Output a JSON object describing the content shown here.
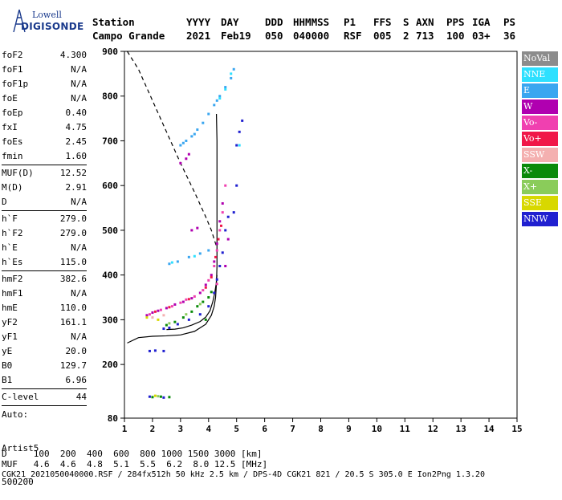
{
  "logo": {
    "top": "Lowell",
    "bottom": "DIGISONDE"
  },
  "header": {
    "labels": [
      "Station",
      "YYYY",
      "DAY",
      "DDD",
      "HHMMSS",
      "P1",
      "FFS",
      "S",
      "AXN",
      "PPS",
      "IGA",
      "PS"
    ],
    "values": [
      "Campo Grande",
      "2021",
      "Feb19",
      "050",
      "040000",
      "RSF",
      "005",
      "2",
      "713",
      "100",
      "03+",
      "36"
    ]
  },
  "params": [
    {
      "k": "foF2",
      "v": "4.300"
    },
    {
      "k": "foF1",
      "v": "N/A"
    },
    {
      "k": "foF1p",
      "v": "N/A"
    },
    {
      "k": "foE",
      "v": "N/A"
    },
    {
      "k": "foEp",
      "v": "0.40"
    },
    {
      "k": "fxI",
      "v": "4.75"
    },
    {
      "k": "foEs",
      "v": "2.45"
    },
    {
      "k": "fmin",
      "v": "1.60",
      "sep": true
    },
    {
      "k": "MUF(D)",
      "v": "12.52"
    },
    {
      "k": "M(D)",
      "v": "2.91"
    },
    {
      "k": "D",
      "v": "N/A",
      "sep": true
    },
    {
      "k": "h`F",
      "v": "279.0"
    },
    {
      "k": "h`F2",
      "v": "279.0"
    },
    {
      "k": "h`E",
      "v": "N/A"
    },
    {
      "k": "h`Es",
      "v": "115.0",
      "sep": true
    },
    {
      "k": "hmF2",
      "v": "382.6"
    },
    {
      "k": "hmF1",
      "v": "N/A"
    },
    {
      "k": "hmE",
      "v": "110.0"
    },
    {
      "k": "yF2",
      "v": "161.1"
    },
    {
      "k": "yF1",
      "v": "N/A"
    },
    {
      "k": "yE",
      "v": "20.0"
    },
    {
      "k": "B0",
      "v": "129.7"
    },
    {
      "k": "B1",
      "v": "6.96",
      "sep": true
    },
    {
      "k": "C-level",
      "v": "44",
      "sep": true
    }
  ],
  "auto": [
    "Auto:",
    "Artist5",
    "500200"
  ],
  "footer": {
    "d_row": "D     100  200  400  600  800 1000 1500 3000 [km]",
    "muf_row": "MUF   4.6  4.6  4.8  5.1  5.5  6.2  8.0 12.5 [MHz]",
    "file_row": "CGK21_2021050040000.RSF / 284fx512h 50 kHz 2.5 km / DPS-4D CGK21 821 / 20.5 S 305.0 E Ion2Png 1.3.20"
  },
  "legend": [
    {
      "label": "NoVal",
      "color": "#8c8c8c"
    },
    {
      "label": "NNE",
      "color": "#2ee0ff"
    },
    {
      "label": "E",
      "color": "#3aa6f0"
    },
    {
      "label": "W",
      "color": "#b000b0"
    },
    {
      "label": "Vo-",
      "color": "#f040b0"
    },
    {
      "label": "Vo+",
      "color": "#f01848"
    },
    {
      "label": "SSW",
      "color": "#f4b0b0"
    },
    {
      "label": "X-",
      "color": "#0a8a0a"
    },
    {
      "label": "X+",
      "color": "#8acc5a"
    },
    {
      "label": "SSE",
      "color": "#d8d800"
    },
    {
      "label": "NNW",
      "color": "#2020d0"
    }
  ],
  "chart_data": {
    "type": "scatter",
    "xlim": [
      1,
      15
    ],
    "ylim": [
      80,
      900
    ],
    "x_ticks": [
      1,
      2,
      3,
      4,
      5,
      6,
      7,
      8,
      9,
      10,
      11,
      12,
      13,
      14,
      15
    ],
    "y_ticks": [
      80,
      200,
      300,
      400,
      500,
      600,
      700,
      800,
      900
    ],
    "series": [
      {
        "name": "E",
        "color": "#3aa6f0",
        "points": [
          [
            3.0,
            690
          ],
          [
            3.2,
            700
          ],
          [
            3.4,
            710
          ],
          [
            3.6,
            725
          ],
          [
            3.8,
            740
          ],
          [
            4.0,
            760
          ],
          [
            4.2,
            780
          ],
          [
            4.4,
            800
          ],
          [
            4.6,
            820
          ],
          [
            4.8,
            840
          ],
          [
            4.9,
            860
          ],
          [
            3.1,
            695
          ],
          [
            3.5,
            715
          ],
          [
            4.3,
            790
          ],
          [
            2.6,
            425
          ],
          [
            2.9,
            430
          ],
          [
            3.3,
            440
          ],
          [
            3.7,
            448
          ],
          [
            4.0,
            455
          ]
        ]
      },
      {
        "name": "NNE",
        "color": "#2ee0ff",
        "points": [
          [
            2.7,
            428
          ],
          [
            3.5,
            442
          ],
          [
            4.4,
            795
          ],
          [
            4.6,
            815
          ],
          [
            5.1,
            690
          ],
          [
            4.8,
            850
          ]
        ]
      },
      {
        "name": "W",
        "color": "#b000b0",
        "points": [
          [
            1.8,
            310
          ],
          [
            2.0,
            316
          ],
          [
            2.2,
            320
          ],
          [
            2.5,
            326
          ],
          [
            2.8,
            334
          ],
          [
            3.1,
            340
          ],
          [
            3.4,
            348
          ],
          [
            3.7,
            360
          ],
          [
            3.9,
            378
          ],
          [
            4.1,
            400
          ],
          [
            4.2,
            430
          ],
          [
            4.3,
            470
          ],
          [
            4.4,
            520
          ],
          [
            4.5,
            560
          ],
          [
            3.0,
            650
          ],
          [
            3.2,
            660
          ],
          [
            3.3,
            670
          ],
          [
            3.4,
            500
          ],
          [
            3.6,
            505
          ],
          [
            4.6,
            420
          ],
          [
            4.7,
            480
          ]
        ]
      },
      {
        "name": "Vo-",
        "color": "#f040b0",
        "points": [
          [
            1.9,
            312
          ],
          [
            2.3,
            322
          ],
          [
            2.7,
            330
          ],
          [
            3.0,
            338
          ],
          [
            3.5,
            352
          ],
          [
            3.8,
            366
          ],
          [
            4.0,
            388
          ],
          [
            4.2,
            420
          ],
          [
            4.3,
            455
          ],
          [
            4.4,
            500
          ],
          [
            4.5,
            540
          ],
          [
            4.6,
            600
          ],
          [
            4.3,
            380
          ],
          [
            3.2,
            345
          ]
        ]
      },
      {
        "name": "Vo+",
        "color": "#f01848",
        "points": [
          [
            2.1,
            318
          ],
          [
            2.6,
            328
          ],
          [
            3.3,
            346
          ],
          [
            3.9,
            372
          ],
          [
            4.1,
            395
          ],
          [
            4.25,
            440
          ],
          [
            4.35,
            480
          ],
          [
            4.45,
            510
          ]
        ]
      },
      {
        "name": "SSW",
        "color": "#f4b0b0",
        "points": [
          [
            2.0,
            305
          ],
          [
            2.4,
            310
          ]
        ]
      },
      {
        "name": "X-",
        "color": "#0a8a0a",
        "points": [
          [
            2.5,
            288
          ],
          [
            2.8,
            295
          ],
          [
            3.1,
            305
          ],
          [
            3.4,
            318
          ],
          [
            3.6,
            330
          ],
          [
            3.8,
            340
          ],
          [
            4.0,
            350
          ],
          [
            4.1,
            362
          ],
          [
            3.9,
            300
          ],
          [
            2.0,
            127
          ],
          [
            2.3,
            128
          ],
          [
            2.6,
            127
          ]
        ]
      },
      {
        "name": "X+",
        "color": "#8acc5a",
        "points": [
          [
            2.6,
            292
          ],
          [
            3.2,
            312
          ],
          [
            3.7,
            335
          ],
          [
            2.2,
            129
          ]
        ]
      },
      {
        "name": "SSE",
        "color": "#d8d800",
        "points": [
          [
            1.8,
            305
          ],
          [
            2.2,
            300
          ],
          [
            2.1,
            130
          ]
        ]
      },
      {
        "name": "NNW",
        "color": "#2020d0",
        "points": [
          [
            2.4,
            280
          ],
          [
            2.6,
            282
          ],
          [
            2.9,
            290
          ],
          [
            3.3,
            300
          ],
          [
            3.7,
            312
          ],
          [
            4.0,
            330
          ],
          [
            4.2,
            360
          ],
          [
            4.3,
            390
          ],
          [
            4.4,
            420
          ],
          [
            4.5,
            450
          ],
          [
            4.6,
            500
          ],
          [
            4.7,
            530
          ],
          [
            5.0,
            690
          ],
          [
            5.1,
            720
          ],
          [
            5.2,
            745
          ],
          [
            5.0,
            600
          ],
          [
            4.9,
            540
          ],
          [
            1.9,
            230
          ],
          [
            2.1,
            231
          ],
          [
            2.4,
            230
          ],
          [
            1.9,
            128
          ],
          [
            2.4,
            126
          ]
        ]
      }
    ],
    "profile_curve": [
      [
        1.1,
        248
      ],
      [
        1.5,
        260
      ],
      [
        2.0,
        263
      ],
      [
        2.5,
        264
      ],
      [
        3.0,
        266
      ],
      [
        3.5,
        274
      ],
      [
        3.9,
        290
      ],
      [
        4.1,
        310
      ],
      [
        4.2,
        330
      ],
      [
        4.25,
        350
      ],
      [
        4.28,
        380
      ],
      [
        4.3,
        420
      ],
      [
        4.3,
        480
      ],
      [
        4.3,
        560
      ],
      [
        4.3,
        650
      ],
      [
        4.3,
        700
      ],
      [
        4.28,
        760
      ]
    ],
    "virtual_trace": [
      [
        2.5,
        278
      ],
      [
        2.8,
        279
      ],
      [
        3.1,
        282
      ],
      [
        3.4,
        288
      ],
      [
        3.7,
        296
      ],
      [
        3.9,
        306
      ],
      [
        4.05,
        320
      ],
      [
        4.15,
        340
      ],
      [
        4.22,
        360
      ],
      [
        4.27,
        380
      ],
      [
        4.3,
        400
      ]
    ],
    "dashed_curve": [
      [
        1.1,
        900
      ],
      [
        1.5,
        860
      ],
      [
        2.0,
        790
      ],
      [
        2.5,
        720
      ],
      [
        3.0,
        650
      ],
      [
        3.5,
        585
      ],
      [
        3.9,
        530
      ],
      [
        4.1,
        500
      ],
      [
        4.3,
        460
      ]
    ]
  }
}
